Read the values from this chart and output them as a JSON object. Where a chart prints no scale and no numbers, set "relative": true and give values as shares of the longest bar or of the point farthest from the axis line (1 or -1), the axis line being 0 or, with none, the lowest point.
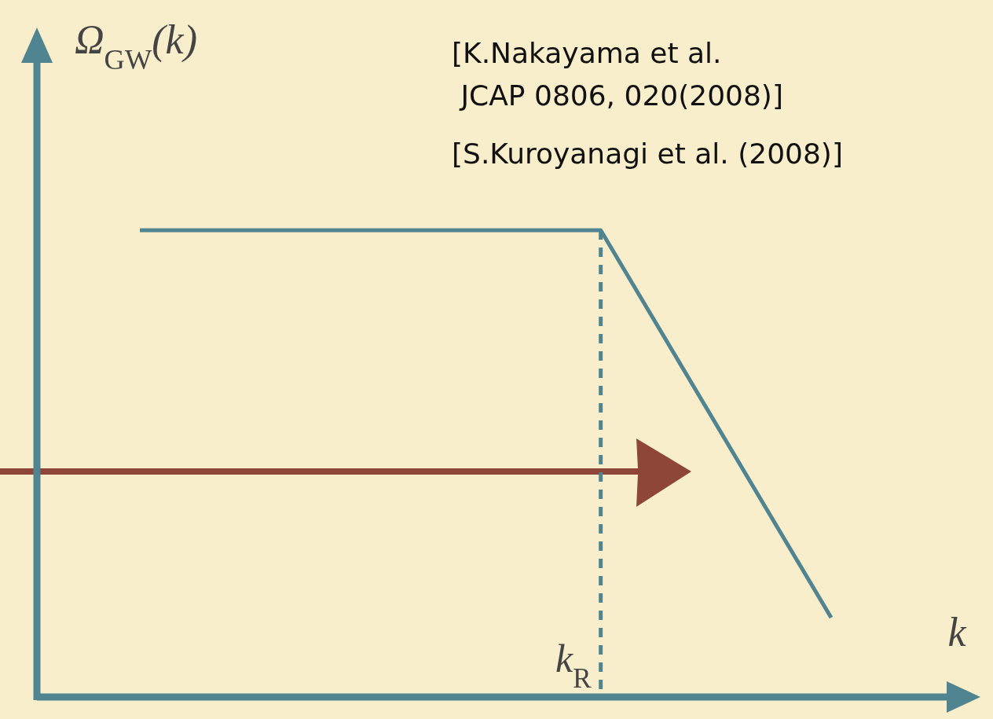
{
  "chart_data": {
    "type": "line",
    "relative": true,
    "xlabel": "k",
    "ylabel": "Ω$_{GW}$(k)",
    "categories": [
      null,
      null,
      null,
      null
    ],
    "series": [
      {
        "color": "#4f8490",
        "values": [
          1,
          1,
          1,
          0.17
        ]
      }
    ],
    "annotations": [
      "k$_{R}$",
      "[K.Nakayama et al.\n JCAP 0806, 020(2008)]",
      "[S.Kuroyanagi et al. (2008)]"
    ]
  }
}
